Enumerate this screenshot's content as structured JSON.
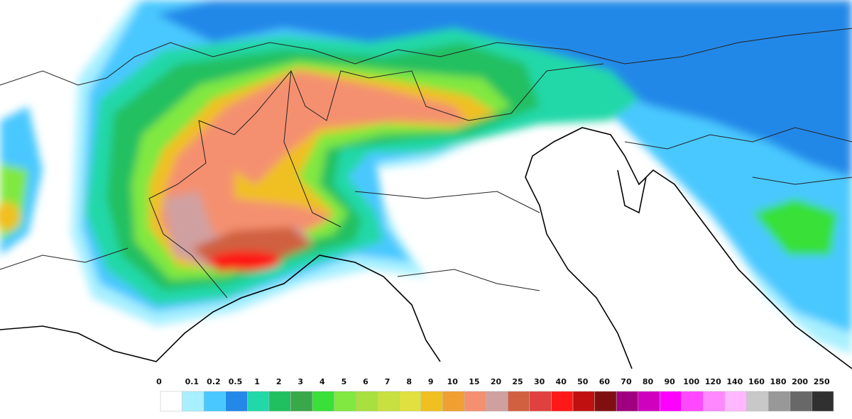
{
  "legend": {
    "ticks": [
      0,
      0.1,
      0.2,
      0.5,
      1,
      2,
      3,
      4,
      5,
      6,
      7,
      8,
      9,
      10,
      15,
      20,
      25,
      30,
      40,
      50,
      60,
      70,
      80,
      90,
      100,
      120,
      140,
      160,
      180,
      200,
      250
    ],
    "colors": [
      "#ffffff",
      "#a8f0ff",
      "#48c8ff",
      "#2488e8",
      "#20d8a8",
      "#20c060",
      "#38a848",
      "#38e038",
      "#80e840",
      "#a8e040",
      "#c8e040",
      "#e0e040",
      "#f0c020",
      "#f0a030",
      "#f49070",
      "#d0a0a0",
      "#d06040",
      "#e04040",
      "#ff1818",
      "#c01010",
      "#801010",
      "#a00080",
      "#d000c0",
      "#ff00ff",
      "#ff48ff",
      "#ff88ff",
      "#ffb8ff",
      "#c8c8c8",
      "#989898",
      "#686868",
      "#303030"
    ]
  }
}
